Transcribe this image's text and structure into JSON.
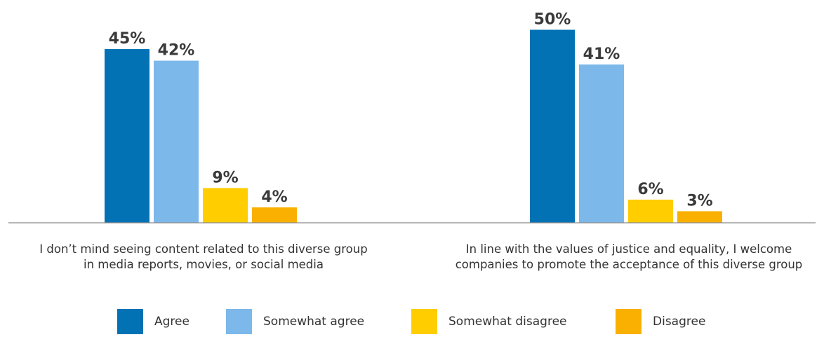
{
  "chart_data": {
    "type": "bar",
    "categories": [
      [
        "I don’t mind seeing content related to this diverse group",
        "in media reports, movies, or social media"
      ],
      [
        "In line with the values of justice and equality, I welcome",
        "companies to promote the acceptance of this diverse group"
      ]
    ],
    "series": [
      {
        "name": "Agree",
        "color": "#0272b5",
        "values": [
          45,
          50
        ],
        "labels": [
          "45%",
          "50%"
        ]
      },
      {
        "name": "Somewhat agree",
        "color": "#7db8ea",
        "values": [
          42,
          41
        ],
        "labels": [
          "42%",
          "41%"
        ]
      },
      {
        "name": "Somewhat disagree",
        "color": "#ffcd00",
        "values": [
          9,
          6
        ],
        "labels": [
          "9%",
          "6%"
        ]
      },
      {
        "name": "Disagree",
        "color": "#f9b000",
        "values": [
          4,
          3
        ],
        "labels": [
          "4%",
          "3%"
        ]
      }
    ],
    "unit": "%",
    "ylim": [
      0,
      50
    ],
    "grid": false,
    "legend_position": "bottom"
  }
}
